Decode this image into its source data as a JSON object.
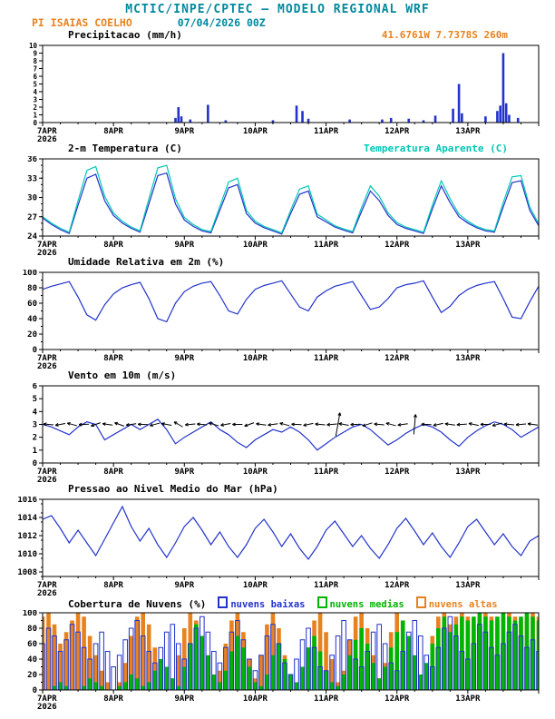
{
  "header": {
    "title": "MCTIC/INPE/CPTEC — MODELO REGIONAL WRF",
    "station": "PI ISAIAS COELHO",
    "run": "07/04/2026 00Z",
    "location": "41.6761W 7.7378S 260m"
  },
  "colors": {
    "teal": "#0089a0",
    "orange": "#e8821e",
    "blue": "#2233cc",
    "cyan": "#00c8b4",
    "green": "#00b400",
    "black": "#000000"
  },
  "axis": {
    "hours": 168,
    "major_step": 24,
    "minor_step": 6,
    "labels": [
      "7APR",
      "8APR",
      "9APR",
      "10APR",
      "11APR",
      "12APR",
      "13APR"
    ],
    "year": "2026"
  },
  "chart_data": [
    {
      "type": "bar",
      "title": "Precipitacao (mm/h)",
      "ylabel": "mm/h",
      "ylim": [
        0,
        10
      ],
      "yticks": [
        0,
        1,
        2,
        3,
        4,
        5,
        6,
        7,
        8,
        9,
        10
      ],
      "color_key": "blue",
      "points": [
        [
          45,
          0.6
        ],
        [
          46,
          2.0
        ],
        [
          47,
          0.8
        ],
        [
          50,
          0.4
        ],
        [
          56,
          2.3
        ],
        [
          62,
          0.3
        ],
        [
          78,
          0.3
        ],
        [
          86,
          2.2
        ],
        [
          88,
          1.5
        ],
        [
          90,
          0.5
        ],
        [
          104,
          0.4
        ],
        [
          115,
          0.4
        ],
        [
          118,
          0.6
        ],
        [
          124,
          0.5
        ],
        [
          129,
          0.3
        ],
        [
          133,
          0.9
        ],
        [
          139,
          1.8
        ],
        [
          141,
          5.0
        ],
        [
          142,
          1.2
        ],
        [
          150,
          0.8
        ],
        [
          154,
          1.5
        ],
        [
          155,
          2.2
        ],
        [
          156,
          9.0
        ],
        [
          157,
          2.5
        ],
        [
          158,
          1.0
        ],
        [
          161,
          0.6
        ]
      ]
    },
    {
      "type": "line",
      "title": "2-m Temperatura (C)",
      "right_title": "Temperatura Aparente (C)",
      "ylim": [
        24,
        36
      ],
      "yticks": [
        24,
        27,
        30,
        33,
        36
      ],
      "yminor": 1,
      "step_hours": 3,
      "series": [
        {
          "name": "2-m Temperatura (C)",
          "color_key": "blue",
          "values": [
            26.8,
            25.8,
            25.0,
            24.4,
            28.8,
            33.0,
            33.6,
            29.5,
            27.2,
            26.0,
            25.2,
            24.6,
            29.0,
            33.4,
            33.8,
            29.0,
            26.5,
            25.5,
            24.8,
            24.5,
            28.0,
            31.5,
            32.0,
            27.5,
            26.0,
            25.3,
            24.8,
            24.3,
            27.5,
            30.5,
            31.0,
            27.0,
            26.2,
            25.4,
            24.9,
            24.5,
            27.8,
            31.0,
            29.5,
            27.2,
            25.8,
            25.2,
            24.8,
            24.4,
            28.2,
            31.8,
            29.2,
            27.0,
            26.0,
            25.3,
            24.8,
            24.6,
            28.5,
            32.3,
            32.6,
            28.0,
            25.6
          ]
        },
        {
          "name": "Temperatura Aparente (C)",
          "color_key": "cyan",
          "values": [
            27.0,
            26.0,
            25.2,
            24.6,
            29.5,
            34.2,
            34.8,
            30.2,
            27.6,
            26.3,
            25.4,
            24.8,
            29.8,
            34.6,
            35.0,
            29.8,
            26.9,
            25.8,
            25.0,
            24.7,
            28.6,
            32.4,
            33.0,
            28.0,
            26.3,
            25.5,
            25.0,
            24.5,
            28.0,
            31.3,
            31.8,
            27.4,
            26.5,
            25.6,
            25.1,
            24.7,
            28.4,
            31.8,
            30.2,
            27.6,
            26.1,
            25.4,
            25.0,
            24.6,
            28.8,
            32.6,
            29.8,
            27.4,
            26.3,
            25.5,
            25.0,
            24.8,
            29.2,
            33.2,
            33.4,
            28.5,
            25.9
          ]
        }
      ]
    },
    {
      "type": "line",
      "title": "Umidade Relativa em 2m (%)",
      "ylim": [
        0,
        100
      ],
      "yticks": [
        0,
        20,
        40,
        60,
        80,
        100
      ],
      "yminor": 10,
      "step_hours": 3,
      "series": [
        {
          "name": "Umidade Relativa em 2m (%)",
          "color_key": "blue",
          "values": [
            78,
            82,
            85,
            88,
            68,
            45,
            38,
            58,
            72,
            80,
            84,
            87,
            66,
            40,
            36,
            60,
            75,
            82,
            86,
            88,
            70,
            50,
            46,
            65,
            78,
            83,
            86,
            89,
            72,
            55,
            50,
            68,
            76,
            82,
            85,
            88,
            70,
            52,
            55,
            66,
            80,
            84,
            86,
            89,
            68,
            48,
            56,
            70,
            78,
            83,
            86,
            88,
            66,
            42,
            40,
            62,
            82
          ]
        }
      ]
    },
    {
      "type": "line",
      "title": "Vento em 10m (m/s)",
      "ylim": [
        0,
        6
      ],
      "yticks": [
        0,
        1,
        2,
        3,
        4,
        5,
        6
      ],
      "step_hours": 3,
      "barb_y": 3,
      "barbs": [
        [
          2,
          185
        ],
        [
          6,
          170
        ],
        [
          10,
          195
        ],
        [
          14,
          178
        ],
        [
          18,
          160
        ],
        [
          22,
          188
        ],
        [
          26,
          200
        ],
        [
          30,
          172
        ],
        [
          34,
          182
        ],
        [
          38,
          165
        ],
        [
          42,
          190
        ],
        [
          46,
          210
        ],
        [
          50,
          175
        ],
        [
          54,
          185
        ],
        [
          58,
          195
        ],
        [
          62,
          170
        ],
        [
          66,
          180
        ],
        [
          70,
          160
        ],
        [
          74,
          188
        ],
        [
          78,
          172
        ],
        [
          82,
          195
        ],
        [
          86,
          182
        ],
        [
          90,
          168
        ],
        [
          94,
          185
        ],
        [
          98,
          175
        ],
        [
          100,
          -80,
          26
        ],
        [
          102,
          190
        ],
        [
          106,
          178
        ],
        [
          110,
          162
        ],
        [
          114,
          185
        ],
        [
          118,
          195
        ],
        [
          122,
          172
        ],
        [
          126,
          -85,
          22
        ],
        [
          130,
          182
        ],
        [
          134,
          168
        ],
        [
          138,
          188
        ],
        [
          142,
          176
        ],
        [
          146,
          192
        ],
        [
          150,
          180
        ],
        [
          154,
          165
        ],
        [
          158,
          185
        ],
        [
          162,
          175
        ],
        [
          166,
          188
        ]
      ],
      "series": [
        {
          "name": "Vento em 10m (m/s)",
          "color_key": "blue",
          "values": [
            3.0,
            2.8,
            2.5,
            2.2,
            2.8,
            3.2,
            3.0,
            1.8,
            2.2,
            2.6,
            3.0,
            2.6,
            3.0,
            3.4,
            2.6,
            1.5,
            2.0,
            2.4,
            2.8,
            3.2,
            2.6,
            2.2,
            1.6,
            1.2,
            1.8,
            2.2,
            2.6,
            2.4,
            2.8,
            2.4,
            1.8,
            1.0,
            1.5,
            2.0,
            2.4,
            2.8,
            3.0,
            2.6,
            2.0,
            1.4,
            1.8,
            2.3,
            2.7,
            3.0,
            2.8,
            2.4,
            1.8,
            1.3,
            2.0,
            2.5,
            2.9,
            3.2,
            3.0,
            2.6,
            2.0,
            2.4,
            2.8
          ]
        }
      ]
    },
    {
      "type": "line",
      "title": "Pressao ao Nivel Medio do Mar (hPa)",
      "ylim": [
        1007.5,
        1016
      ],
      "yticks": [
        1008,
        1010,
        1012,
        1014,
        1016
      ],
      "yminor": 1,
      "step_hours": 3,
      "series": [
        {
          "name": "Pressao ao Nivel Medio do Mar (hPa)",
          "color_key": "blue",
          "values": [
            1013.8,
            1014.2,
            1012.8,
            1011.2,
            1012.6,
            1011.2,
            1009.8,
            1011.6,
            1013.4,
            1015.2,
            1013.0,
            1011.4,
            1012.8,
            1011.0,
            1009.6,
            1011.2,
            1013.0,
            1014.0,
            1012.6,
            1011.0,
            1012.4,
            1010.8,
            1009.6,
            1011.0,
            1012.8,
            1013.8,
            1012.4,
            1010.8,
            1012.2,
            1010.6,
            1009.4,
            1010.8,
            1012.6,
            1013.6,
            1012.2,
            1010.8,
            1012.0,
            1010.6,
            1009.5,
            1011.0,
            1012.8,
            1013.9,
            1012.5,
            1011.0,
            1012.3,
            1010.8,
            1009.6,
            1011.2,
            1013.0,
            1013.8,
            1012.4,
            1011.0,
            1012.2,
            1010.8,
            1009.8,
            1011.4,
            1012.0
          ]
        }
      ]
    },
    {
      "type": "multibar",
      "title": "Cobertura de Nuvens (%)",
      "ylim": [
        0,
        100
      ],
      "yticks": [
        0,
        20,
        40,
        60,
        80,
        100
      ],
      "yminor": 10,
      "step_hours": 2,
      "legend": [
        {
          "label": "nuvens baixas",
          "color_key": "blue"
        },
        {
          "label": "nuvens medias",
          "color_key": "green"
        },
        {
          "label": "nuvens altas",
          "color_key": "orange"
        }
      ],
      "series": [
        {
          "name": "nuvens altas",
          "color_key": "orange",
          "style": "fill",
          "values": [
            95,
            100,
            85,
            60,
            75,
            90,
            100,
            95,
            70,
            45,
            25,
            10,
            0,
            10,
            35,
            70,
            95,
            100,
            85,
            55,
            25,
            5,
            15,
            45,
            80,
            100,
            90,
            60,
            30,
            10,
            25,
            60,
            90,
            100,
            75,
            40,
            15,
            45,
            85,
            100,
            80,
            45,
            15,
            0,
            20,
            55,
            90,
            100,
            75,
            40,
            10,
            25,
            65,
            95,
            100,
            80,
            45,
            15,
            35,
            75,
            100,
            90,
            55,
            20,
            5,
            30,
            70,
            95,
            100,
            85,
            95,
            100,
            95,
            85,
            95,
            100,
            95,
            90,
            95,
            100,
            95,
            90,
            95,
            100,
            95
          ]
        },
        {
          "name": "nuvens medias",
          "color_key": "green",
          "style": "fill",
          "values": [
            0,
            0,
            5,
            10,
            5,
            0,
            0,
            5,
            15,
            10,
            5,
            0,
            0,
            5,
            10,
            20,
            15,
            5,
            10,
            25,
            40,
            30,
            15,
            5,
            30,
            60,
            85,
            70,
            45,
            20,
            10,
            25,
            50,
            70,
            55,
            30,
            10,
            5,
            20,
            45,
            60,
            40,
            20,
            10,
            30,
            55,
            70,
            50,
            25,
            10,
            5,
            20,
            45,
            65,
            80,
            60,
            35,
            15,
            30,
            55,
            75,
            90,
            70,
            45,
            20,
            35,
            60,
            80,
            95,
            75,
            85,
            95,
            90,
            95,
            100,
            95,
            90,
            95,
            100,
            95,
            90,
            95,
            100,
            95,
            90
          ]
        },
        {
          "name": "nuvens baixas",
          "color_key": "blue",
          "style": "outline",
          "values": [
            60,
            80,
            70,
            50,
            65,
            85,
            75,
            55,
            40,
            60,
            75,
            50,
            30,
            45,
            65,
            80,
            90,
            70,
            50,
            35,
            55,
            75,
            85,
            60,
            40,
            60,
            80,
            95,
            75,
            50,
            35,
            55,
            75,
            90,
            65,
            40,
            25,
            45,
            70,
            85,
            60,
            35,
            20,
            40,
            65,
            80,
            55,
            30,
            25,
            45,
            70,
            90,
            65,
            40,
            30,
            50,
            75,
            85,
            60,
            35,
            25,
            50,
            75,
            90,
            70,
            45,
            30,
            55,
            80,
            95,
            70,
            50,
            40,
            60,
            85,
            75,
            55,
            45,
            60,
            75,
            85,
            70,
            55,
            65,
            50
          ]
        }
      ]
    }
  ]
}
